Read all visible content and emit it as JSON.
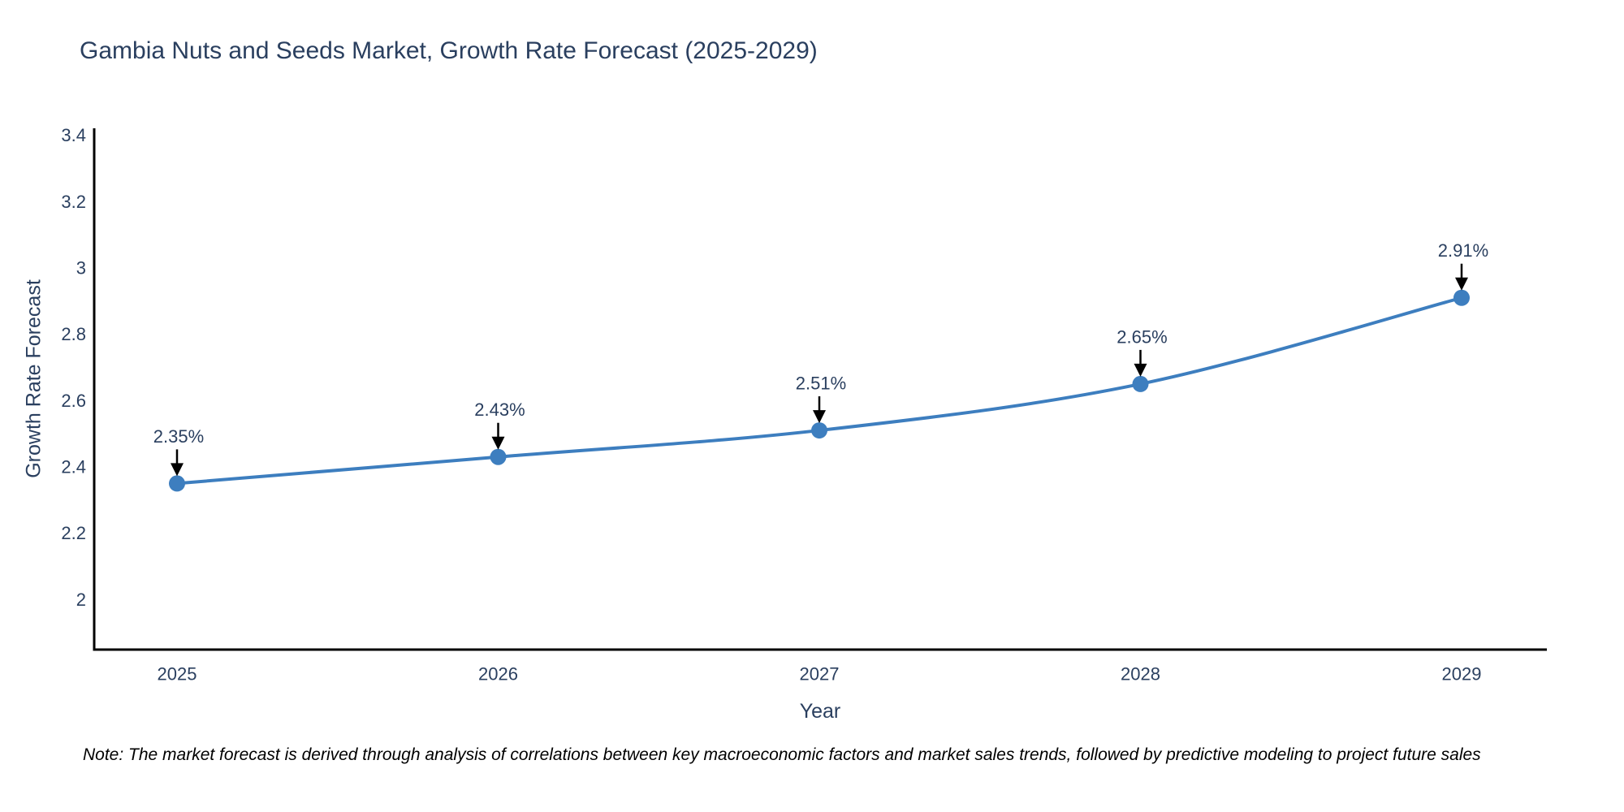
{
  "chart_data": {
    "type": "line",
    "title": "Gambia Nuts and Seeds Market, Growth Rate Forecast (2025-2029)",
    "xlabel": "Year",
    "ylabel": "Growth Rate Forecast",
    "categories": [
      "2025",
      "2026",
      "2027",
      "2028",
      "2029"
    ],
    "series": [
      {
        "name": "Growth Rate Forecast",
        "values": [
          2.35,
          2.43,
          2.51,
          2.65,
          2.91
        ],
        "point_labels": [
          "2.35%",
          "2.43%",
          "2.51%",
          "2.65%",
          "2.91%"
        ]
      }
    ],
    "yticks": [
      "2",
      "2.2",
      "2.4",
      "2.6",
      "2.8",
      "3",
      "3.2",
      "3.4"
    ],
    "ytick_values": [
      2,
      2.2,
      2.4,
      2.6,
      2.8,
      3,
      3.2,
      3.4
    ],
    "ylim": [
      1.85,
      3.42
    ],
    "grid": false,
    "legend_position": "none",
    "line_shape": "spline",
    "colors": {
      "line": "#3d7ebf",
      "marker": "#3d7ebf",
      "axis_line": "#000000",
      "text": "#2a3f5f",
      "annotation_arrow": "#000000",
      "background": "#ffffff"
    },
    "note": "Note: The market forecast is derived through analysis of correlations between key macroeconomic factors and market sales trends, followed by predictive modeling to project future sales"
  }
}
